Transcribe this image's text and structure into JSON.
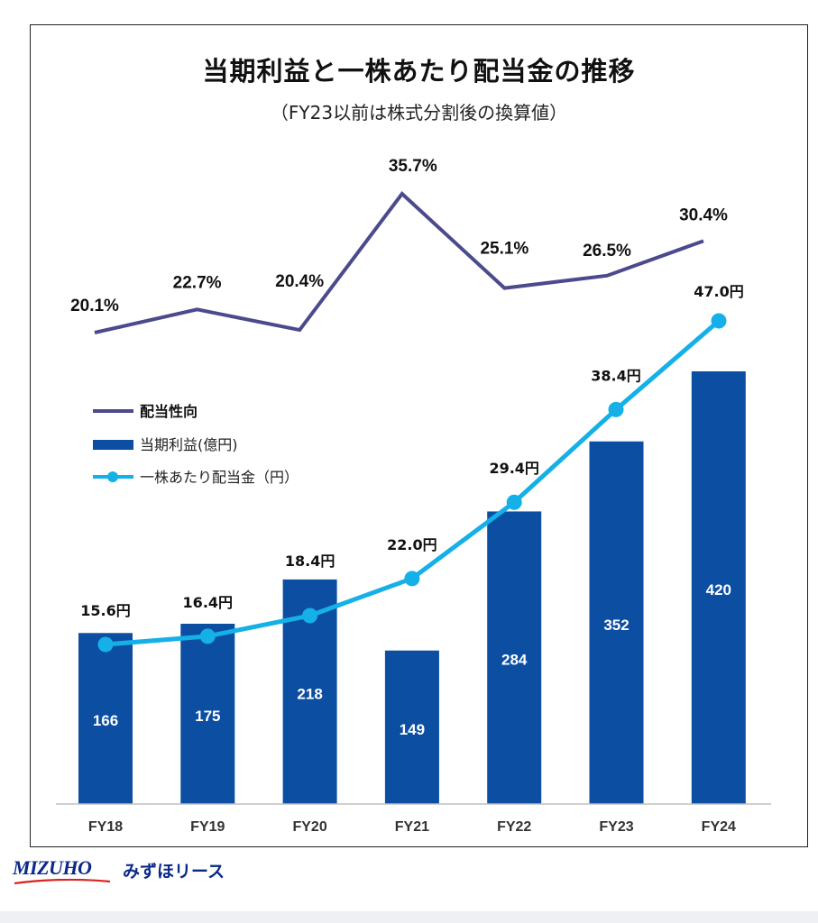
{
  "chart_data": {
    "type": "bar",
    "title": "当期利益と一株あたり配当金の推移",
    "subtitle": "（FY23以前は株式分割後の換算値）",
    "categories": [
      "FY18",
      "FY19",
      "FY20",
      "FY21",
      "FY22",
      "FY23",
      "FY24"
    ],
    "series": [
      {
        "name": "配当性向",
        "kind": "line",
        "values": [
          20.1,
          22.7,
          20.4,
          35.7,
          25.1,
          26.5,
          30.4
        ],
        "labels": [
          "20.1%",
          "22.7%",
          "20.4%",
          "35.7%",
          "25.1%",
          "26.5%",
          "30.4%"
        ],
        "color": "#4a4a8c"
      },
      {
        "name": "当期利益(億円)",
        "kind": "bar",
        "values": [
          166,
          175,
          218,
          149,
          284,
          352,
          420
        ],
        "labels": [
          "166",
          "175",
          "218",
          "149",
          "284",
          "352",
          "420"
        ],
        "color": "#0b4ea2"
      },
      {
        "name": "一株あたり配当金（円）",
        "kind": "line-markers",
        "values": [
          15.6,
          16.4,
          18.4,
          22.0,
          29.4,
          38.4,
          47.0
        ],
        "labels": [
          "15.6円",
          "16.4円",
          "18.4円",
          "22.0円",
          "29.4円",
          "38.4円",
          "47.0円"
        ],
        "color": "#15b0e8"
      }
    ],
    "legend_position": "left-middle",
    "grid": false
  },
  "footer": {
    "logo_text": "MIZUHO",
    "company_text": "みずほリース"
  }
}
